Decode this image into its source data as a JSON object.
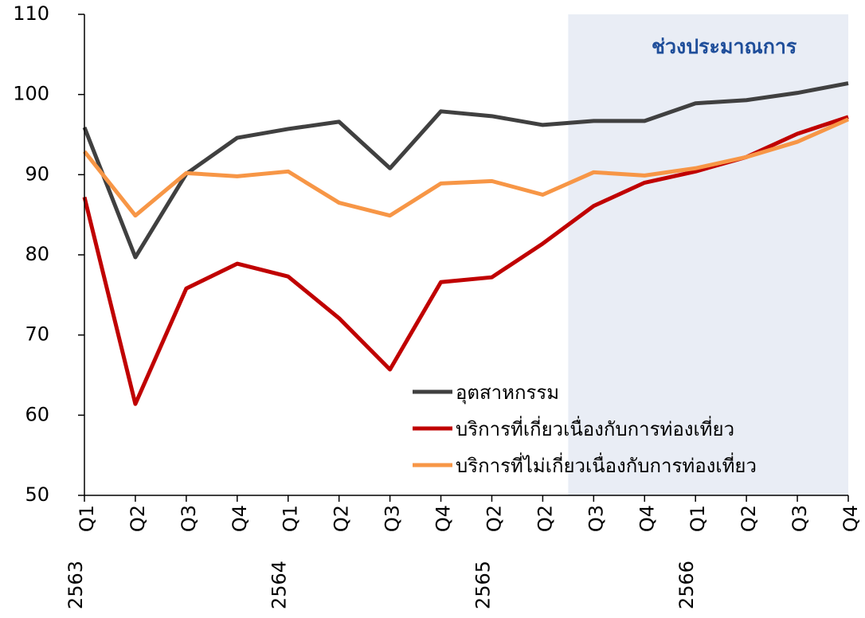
{
  "chart_data": {
    "type": "line",
    "categories": [
      "Q1",
      "Q2",
      "Q3",
      "Q4",
      "Q1",
      "Q2",
      "Q3",
      "Q4",
      "Q2",
      "Q2",
      "Q3",
      "Q4",
      "Q1",
      "Q2",
      "Q3",
      "Q4"
    ],
    "category_groups": [
      {
        "label": "2563",
        "start": 0
      },
      {
        "label": "2564",
        "start": 4
      },
      {
        "label": "2565",
        "start": 8
      },
      {
        "label": "2566",
        "start": 12
      }
    ],
    "series": [
      {
        "name": "อุตสาหกรรม",
        "color": "#404040",
        "values": [
          95.9,
          79.7,
          90.1,
          94.6,
          95.7,
          96.6,
          90.8,
          97.9,
          97.3,
          96.2,
          96.7,
          96.7,
          98.9,
          99.3,
          100.2,
          101.4
        ]
      },
      {
        "name": "บริการที่เกี่ยวเนื่องกับการท่องเที่ยว",
        "color": "#c00000",
        "values": [
          87.2,
          61.4,
          75.8,
          78.9,
          77.3,
          72.1,
          65.7,
          76.6,
          77.2,
          81.4,
          86.1,
          89.0,
          90.4,
          92.2,
          95.1,
          97.2
        ]
      },
      {
        "name": "บริการที่ไม่เกี่ยวเนื่องกับการท่องเที่ยว",
        "color": "#f79646",
        "values": [
          92.9,
          84.9,
          90.2,
          89.8,
          90.4,
          86.5,
          84.9,
          88.9,
          89.2,
          87.5,
          90.3,
          89.9,
          90.8,
          92.2,
          94.1,
          96.9
        ]
      }
    ],
    "ylim": [
      50,
      110
    ],
    "yticks": [
      50,
      60,
      70,
      80,
      90,
      100,
      110
    ],
    "shaded_region": {
      "label": "ช่วงประมาณการ",
      "start": 9.5,
      "end": 15,
      "color": "#e9edf5"
    },
    "legend": "lower right"
  }
}
